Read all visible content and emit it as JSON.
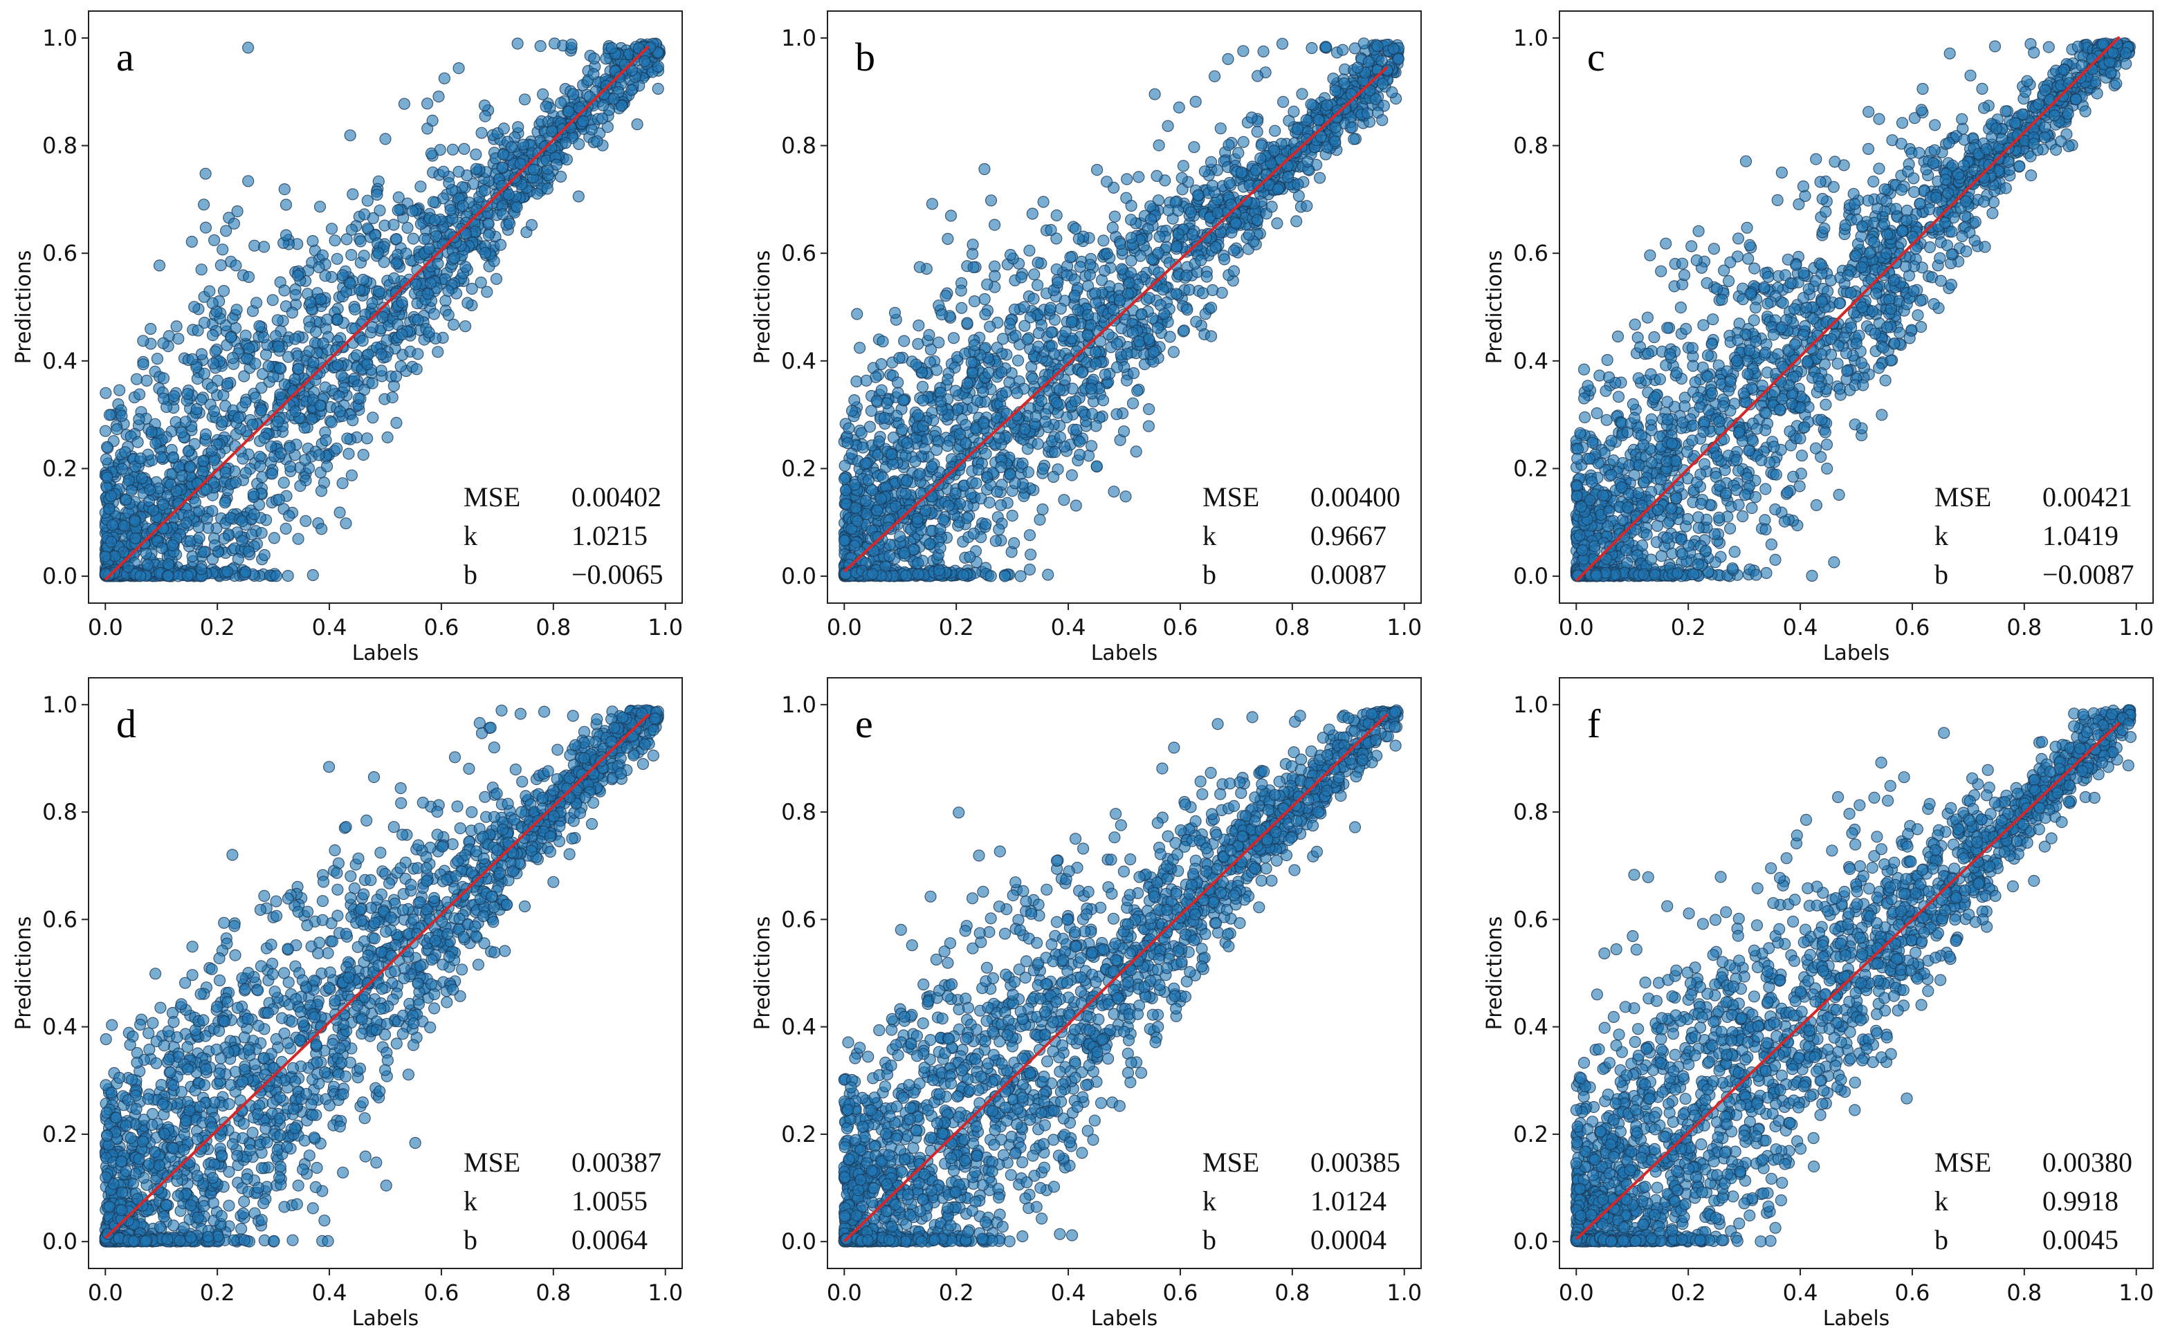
{
  "chart_data": [
    {
      "type": "scatter",
      "panel": "a",
      "xlabel": "Labels",
      "ylabel": "Predictions",
      "xlim": [
        -0.03,
        1.03
      ],
      "ylim": [
        -0.05,
        1.05
      ],
      "xticks": [
        "0.0",
        "0.2",
        "0.4",
        "0.6",
        "0.8",
        "1.0"
      ],
      "yticks": [
        "0.0",
        "0.2",
        "0.4",
        "0.6",
        "0.8",
        "1.0"
      ],
      "point_color": "#1f77b4",
      "line_color": "#d62728",
      "fit": {
        "slope": 1.0215,
        "intercept": -0.0065
      },
      "stats": [
        {
          "name": "MSE",
          "value": "0.00402"
        },
        {
          "name": "k",
          "value": "1.0215"
        },
        {
          "name": "b",
          "value": "−0.0065"
        }
      ]
    },
    {
      "type": "scatter",
      "panel": "b",
      "xlabel": "Labels",
      "ylabel": "Predictions",
      "xlim": [
        -0.03,
        1.03
      ],
      "ylim": [
        -0.05,
        1.05
      ],
      "xticks": [
        "0.0",
        "0.2",
        "0.4",
        "0.6",
        "0.8",
        "1.0"
      ],
      "yticks": [
        "0.0",
        "0.2",
        "0.4",
        "0.6",
        "0.8",
        "1.0"
      ],
      "point_color": "#1f77b4",
      "line_color": "#d62728",
      "fit": {
        "slope": 0.9667,
        "intercept": 0.0087
      },
      "stats": [
        {
          "name": "MSE",
          "value": "0.00400"
        },
        {
          "name": "k",
          "value": "0.9667"
        },
        {
          "name": "b",
          "value": "0.0087"
        }
      ]
    },
    {
      "type": "scatter",
      "panel": "c",
      "xlabel": "Labels",
      "ylabel": "Predictions",
      "xlim": [
        -0.03,
        1.03
      ],
      "ylim": [
        -0.05,
        1.05
      ],
      "xticks": [
        "0.0",
        "0.2",
        "0.4",
        "0.6",
        "0.8",
        "1.0"
      ],
      "yticks": [
        "0.0",
        "0.2",
        "0.4",
        "0.6",
        "0.8",
        "1.0"
      ],
      "point_color": "#1f77b4",
      "line_color": "#d62728",
      "fit": {
        "slope": 1.0419,
        "intercept": -0.0087
      },
      "stats": [
        {
          "name": "MSE",
          "value": "0.00421"
        },
        {
          "name": "k",
          "value": "1.0419"
        },
        {
          "name": "b",
          "value": "−0.0087"
        }
      ]
    },
    {
      "type": "scatter",
      "panel": "d",
      "xlabel": "Labels",
      "ylabel": "Predictions",
      "xlim": [
        -0.03,
        1.03
      ],
      "ylim": [
        -0.05,
        1.05
      ],
      "xticks": [
        "0.0",
        "0.2",
        "0.4",
        "0.6",
        "0.8",
        "1.0"
      ],
      "yticks": [
        "0.0",
        "0.2",
        "0.4",
        "0.6",
        "0.8",
        "1.0"
      ],
      "point_color": "#1f77b4",
      "line_color": "#d62728",
      "fit": {
        "slope": 1.0055,
        "intercept": 0.0064
      },
      "stats": [
        {
          "name": "MSE",
          "value": "0.00387"
        },
        {
          "name": "k",
          "value": "1.0055"
        },
        {
          "name": "b",
          "value": "0.0064"
        }
      ]
    },
    {
      "type": "scatter",
      "panel": "e",
      "xlabel": "Labels",
      "ylabel": "Predictions",
      "xlim": [
        -0.03,
        1.03
      ],
      "ylim": [
        -0.05,
        1.05
      ],
      "xticks": [
        "0.0",
        "0.2",
        "0.4",
        "0.6",
        "0.8",
        "1.0"
      ],
      "yticks": [
        "0.0",
        "0.2",
        "0.4",
        "0.6",
        "0.8",
        "1.0"
      ],
      "point_color": "#1f77b4",
      "line_color": "#d62728",
      "fit": {
        "slope": 1.0124,
        "intercept": 0.0004
      },
      "stats": [
        {
          "name": "MSE",
          "value": "0.00385"
        },
        {
          "name": "k",
          "value": "1.0124"
        },
        {
          "name": "b",
          "value": "0.0004"
        }
      ]
    },
    {
      "type": "scatter",
      "panel": "f",
      "xlabel": "Labels",
      "ylabel": "Predictions",
      "xlim": [
        -0.03,
        1.03
      ],
      "ylim": [
        -0.05,
        1.05
      ],
      "xticks": [
        "0.0",
        "0.2",
        "0.4",
        "0.6",
        "0.8",
        "1.0"
      ],
      "yticks": [
        "0.0",
        "0.2",
        "0.4",
        "0.6",
        "0.8",
        "1.0"
      ],
      "point_color": "#1f77b4",
      "line_color": "#d62728",
      "fit": {
        "slope": 0.9918,
        "intercept": 0.0045
      },
      "stats": [
        {
          "name": "MSE",
          "value": "0.00380"
        },
        {
          "name": "k",
          "value": "0.9918"
        },
        {
          "name": "b",
          "value": "0.0045"
        }
      ]
    }
  ]
}
